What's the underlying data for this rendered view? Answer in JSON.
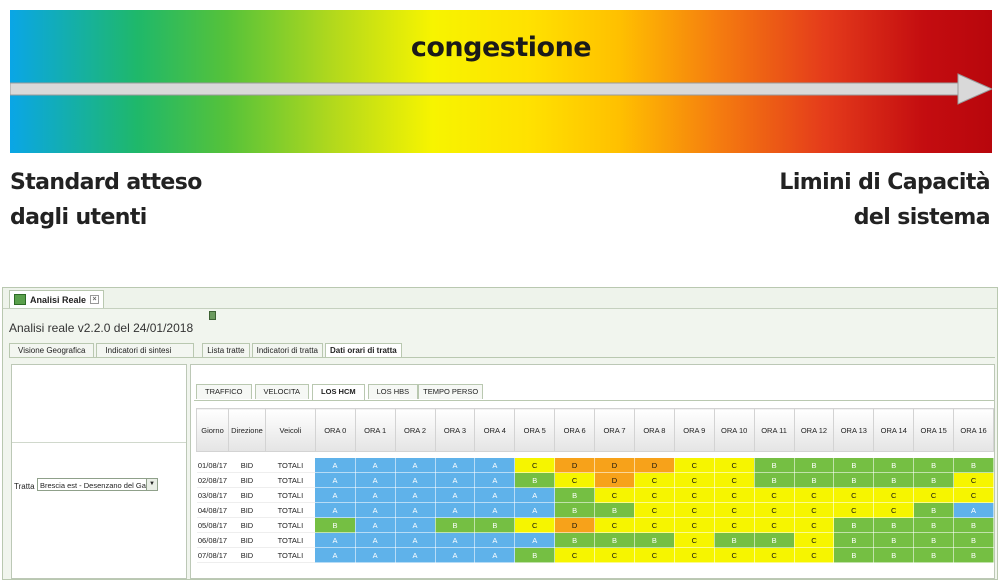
{
  "banner": {
    "title": "congestione",
    "left_line1": "Standard atteso",
    "left_line2": "dagli utenti",
    "right_line1": "Limini di Capacità",
    "right_line2": "del sistema"
  },
  "app": {
    "tab_title": "Analisi Reale",
    "version": "Analisi reale v2.2.0 del 24/01/2018",
    "main_tabs": [
      "Visione Geografica",
      "Indicatori di sintesi",
      "Lista tratte",
      "Indicatori di tratta",
      "Dati orari di tratta"
    ],
    "active_main_tab": "Dati orari di tratta",
    "tratta_label": "Tratta :",
    "tratta_value": "Brescia est - Desenzano del Ga",
    "sub_tabs": [
      "TRAFFICO",
      "VELOCITA",
      "LOS HCM",
      "LOS HBS",
      "TEMPO PERSO"
    ],
    "active_sub_tab": "LOS HCM"
  },
  "table": {
    "headers": [
      "Giorno",
      "Direzione",
      "Veicoli",
      "ORA 0",
      "ORA 1",
      "ORA 2",
      "ORA 3",
      "ORA 4",
      "ORA 5",
      "ORA 6",
      "ORA 7",
      "ORA 8",
      "ORA 9",
      "ORA 10",
      "ORA 11",
      "ORA 12",
      "ORA 13",
      "ORA 14",
      "ORA 15",
      "ORA 16"
    ],
    "rows": [
      {
        "giorno": "01/08/17",
        "direzione": "BID",
        "veicoli": "TOTALI",
        "los": [
          "A",
          "A",
          "A",
          "A",
          "A",
          "C",
          "D",
          "D",
          "D",
          "C",
          "C",
          "B",
          "B",
          "B",
          "B",
          "B",
          "B"
        ]
      },
      {
        "giorno": "02/08/17",
        "direzione": "BID",
        "veicoli": "TOTALI",
        "los": [
          "A",
          "A",
          "A",
          "A",
          "A",
          "B",
          "C",
          "D",
          "C",
          "C",
          "C",
          "B",
          "B",
          "B",
          "B",
          "B",
          "C"
        ]
      },
      {
        "giorno": "03/08/17",
        "direzione": "BID",
        "veicoli": "TOTALI",
        "los": [
          "A",
          "A",
          "A",
          "A",
          "A",
          "A",
          "B",
          "C",
          "C",
          "C",
          "C",
          "C",
          "C",
          "C",
          "C",
          "C",
          "C"
        ]
      },
      {
        "giorno": "04/08/17",
        "direzione": "BID",
        "veicoli": "TOTALI",
        "los": [
          "A",
          "A",
          "A",
          "A",
          "A",
          "A",
          "B",
          "B",
          "C",
          "C",
          "C",
          "C",
          "C",
          "C",
          "C",
          "B",
          "A"
        ]
      },
      {
        "giorno": "05/08/17",
        "direzione": "BID",
        "veicoli": "TOTALI",
        "los": [
          "B",
          "A",
          "A",
          "B",
          "B",
          "C",
          "D",
          "C",
          "C",
          "C",
          "C",
          "C",
          "C",
          "B",
          "B",
          "B",
          "B"
        ]
      },
      {
        "giorno": "06/08/17",
        "direzione": "BID",
        "veicoli": "TOTALI",
        "los": [
          "A",
          "A",
          "A",
          "A",
          "A",
          "A",
          "B",
          "B",
          "B",
          "C",
          "B",
          "B",
          "C",
          "B",
          "B",
          "B",
          "B"
        ]
      },
      {
        "giorno": "07/08/17",
        "direzione": "BID",
        "veicoli": "TOTALI",
        "los": [
          "A",
          "A",
          "A",
          "A",
          "A",
          "B",
          "C",
          "C",
          "C",
          "C",
          "C",
          "C",
          "C",
          "B",
          "B",
          "B",
          "B"
        ]
      }
    ]
  },
  "colors": {
    "A": "#5fb2ea",
    "B": "#75bf43",
    "C": "#f6f500",
    "D": "#f7a21a"
  }
}
